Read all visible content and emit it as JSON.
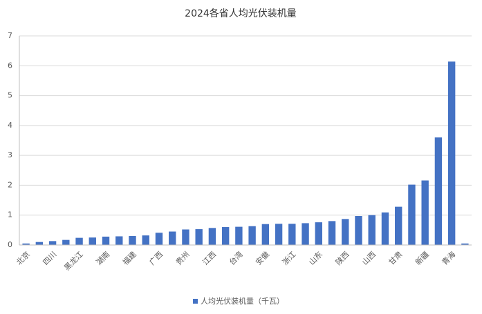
{
  "chart_data": {
    "type": "bar",
    "title": "2024各省人均光伏装机量",
    "categories": [
      "北京",
      null,
      "四川",
      null,
      "黑龙江",
      null,
      "湖南",
      null,
      "福建",
      null,
      "广西",
      null,
      "贵州",
      null,
      "江西",
      null,
      "台湾",
      null,
      "安徽",
      null,
      "浙江",
      null,
      "山东",
      null,
      "陕西",
      null,
      "山西",
      null,
      "甘肃",
      null,
      "新疆",
      null,
      "青海",
      null
    ],
    "series": [
      {
        "name": "人均光伏装机量（千瓦）",
        "color": "#4472c4",
        "values": [
          0.05,
          0.1,
          0.13,
          0.17,
          0.24,
          0.25,
          0.28,
          0.29,
          0.3,
          0.32,
          0.41,
          0.45,
          0.52,
          0.53,
          0.57,
          0.6,
          0.61,
          0.63,
          0.7,
          0.71,
          0.71,
          0.73,
          0.76,
          0.8,
          0.87,
          0.97,
          1.0,
          1.09,
          1.28,
          2.02,
          2.16,
          3.6,
          6.14,
          0.05
        ]
      }
    ],
    "ylim": [
      0,
      7
    ],
    "yticks": [
      0,
      1,
      2,
      3,
      4,
      5,
      6,
      7
    ],
    "grid": true,
    "legend": "bottom"
  }
}
